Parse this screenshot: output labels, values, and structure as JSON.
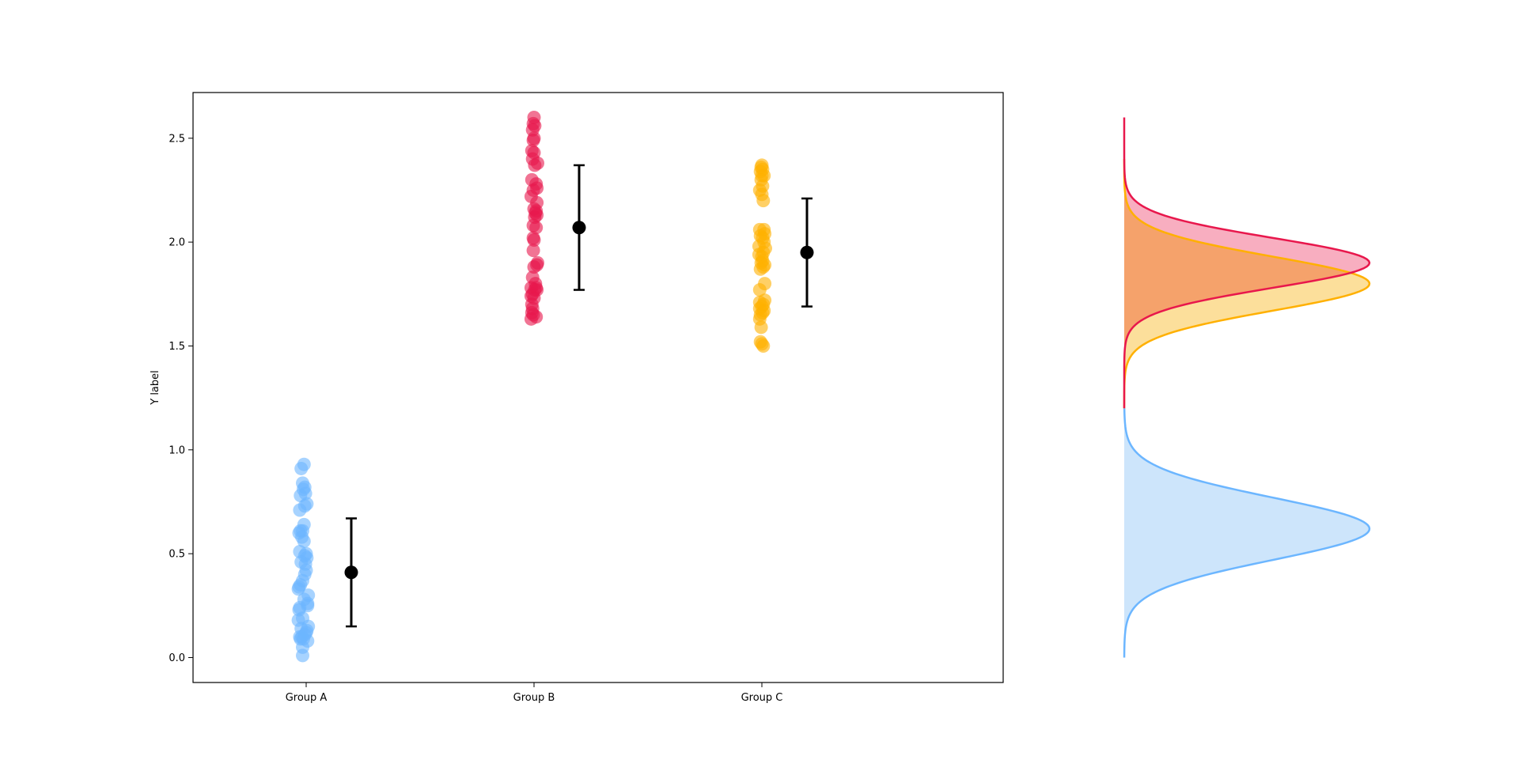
{
  "chart_data": {
    "type": "scatter",
    "ylabel": "Y label",
    "xlabel": "",
    "ylim": [
      -0.12,
      2.72
    ],
    "yticks": [
      "0.0",
      "0.5",
      "1.0",
      "1.5",
      "2.0",
      "2.5"
    ],
    "yticks_values": [
      0.0,
      0.5,
      1.0,
      1.5,
      2.0,
      2.5
    ],
    "categories": [
      "Group A",
      "Group B",
      "Group C"
    ],
    "grid": false,
    "series": [
      {
        "category": "Group A",
        "color": "#6cb6ff",
        "points": [
          [
            -0.03,
            0.93
          ],
          [
            -0.07,
            0.91
          ],
          [
            -0.05,
            0.84
          ],
          [
            -0.02,
            0.82
          ],
          [
            -0.04,
            0.81
          ],
          [
            -0.01,
            0.79
          ],
          [
            -0.08,
            0.78
          ],
          [
            0.01,
            0.74
          ],
          [
            -0.02,
            0.73
          ],
          [
            -0.09,
            0.71
          ],
          [
            -0.03,
            0.64
          ],
          [
            -0.08,
            0.61
          ],
          [
            -0.05,
            0.61
          ],
          [
            -0.1,
            0.6
          ],
          [
            -0.06,
            0.58
          ],
          [
            -0.03,
            0.56
          ],
          [
            -0.09,
            0.51
          ],
          [
            0.0,
            0.5
          ],
          [
            -0.02,
            0.49
          ],
          [
            0.01,
            0.48
          ],
          [
            -0.07,
            0.46
          ],
          [
            -0.01,
            0.45
          ],
          [
            0.0,
            0.42
          ],
          [
            -0.02,
            0.4
          ],
          [
            -0.05,
            0.37
          ],
          [
            -0.08,
            0.35
          ],
          [
            -0.1,
            0.34
          ],
          [
            -0.11,
            0.33
          ],
          [
            0.03,
            0.3
          ],
          [
            -0.03,
            0.28
          ],
          [
            0.02,
            0.26
          ],
          [
            0.02,
            0.25
          ],
          [
            -0.09,
            0.24
          ],
          [
            -0.1,
            0.23
          ],
          [
            -0.05,
            0.19
          ],
          [
            -0.11,
            0.18
          ],
          [
            0.03,
            0.15
          ],
          [
            -0.07,
            0.14
          ],
          [
            0.01,
            0.13
          ],
          [
            0.0,
            0.12
          ],
          [
            -0.02,
            0.11
          ],
          [
            -0.09,
            0.1
          ],
          [
            -0.06,
            0.1
          ],
          [
            -0.04,
            0.09
          ],
          [
            -0.08,
            0.09
          ],
          [
            0.02,
            0.08
          ],
          [
            -0.05,
            0.05
          ],
          [
            -0.05,
            0.01
          ]
        ],
        "mean": 0.41,
        "err_low": 0.15,
        "err_high": 0.67,
        "density_mode": 0.62,
        "density_sd": 0.15
      },
      {
        "category": "Group B",
        "color": "#e8174c",
        "points": [
          [
            0.0,
            2.6
          ],
          [
            -0.01,
            2.57
          ],
          [
            0.01,
            2.56
          ],
          [
            -0.02,
            2.54
          ],
          [
            0.0,
            2.5
          ],
          [
            -0.01,
            2.49
          ],
          [
            -0.03,
            2.44
          ],
          [
            0.0,
            2.43
          ],
          [
            -0.02,
            2.4
          ],
          [
            0.05,
            2.38
          ],
          [
            0.01,
            2.37
          ],
          [
            -0.03,
            2.3
          ],
          [
            0.03,
            2.28
          ],
          [
            0.04,
            2.26
          ],
          [
            -0.01,
            2.25
          ],
          [
            -0.04,
            2.22
          ],
          [
            0.04,
            2.19
          ],
          [
            0.0,
            2.16
          ],
          [
            0.03,
            2.15
          ],
          [
            0.02,
            2.14
          ],
          [
            0.04,
            2.13
          ],
          [
            0.01,
            2.12
          ],
          [
            -0.01,
            2.08
          ],
          [
            0.03,
            2.07
          ],
          [
            -0.01,
            2.02
          ],
          [
            0.0,
            2.01
          ],
          [
            -0.01,
            1.96
          ],
          [
            0.05,
            1.9
          ],
          [
            0.04,
            1.89
          ],
          [
            0.0,
            1.88
          ],
          [
            -0.02,
            1.83
          ],
          [
            0.02,
            1.8
          ],
          [
            -0.04,
            1.78
          ],
          [
            0.03,
            1.78
          ],
          [
            0.01,
            1.77
          ],
          [
            0.04,
            1.77
          ],
          [
            -0.02,
            1.75
          ],
          [
            -0.04,
            1.74
          ],
          [
            0.0,
            1.73
          ],
          [
            -0.03,
            1.7
          ],
          [
            -0.02,
            1.68
          ],
          [
            -0.03,
            1.66
          ],
          [
            -0.01,
            1.65
          ],
          [
            0.03,
            1.64
          ],
          [
            -0.04,
            1.63
          ]
        ],
        "mean": 2.07,
        "err_low": 1.77,
        "err_high": 2.37,
        "density_mode": 1.9,
        "density_sd": 0.12
      },
      {
        "category": "Group C",
        "color": "#ffb000",
        "points": [
          [
            0.0,
            2.37
          ],
          [
            -0.01,
            2.36
          ],
          [
            0.01,
            2.35
          ],
          [
            -0.02,
            2.34
          ],
          [
            0.0,
            2.32
          ],
          [
            0.03,
            2.32
          ],
          [
            -0.01,
            2.3
          ],
          [
            0.01,
            2.27
          ],
          [
            -0.03,
            2.25
          ],
          [
            0.0,
            2.23
          ],
          [
            0.02,
            2.2
          ],
          [
            0.03,
            2.06
          ],
          [
            -0.03,
            2.06
          ],
          [
            0.04,
            2.04
          ],
          [
            -0.02,
            2.03
          ],
          [
            0.01,
            2.02
          ],
          [
            0.03,
            2.0
          ],
          [
            -0.04,
            1.98
          ],
          [
            0.05,
            1.97
          ],
          [
            0.02,
            1.95
          ],
          [
            -0.04,
            1.94
          ],
          [
            0.0,
            1.93
          ],
          [
            0.01,
            1.91
          ],
          [
            -0.01,
            1.9
          ],
          [
            0.04,
            1.89
          ],
          [
            0.02,
            1.88
          ],
          [
            -0.02,
            1.87
          ],
          [
            0.04,
            1.8
          ],
          [
            -0.03,
            1.77
          ],
          [
            0.04,
            1.72
          ],
          [
            -0.03,
            1.71
          ],
          [
            0.02,
            1.7
          ],
          [
            0.0,
            1.69
          ],
          [
            -0.03,
            1.68
          ],
          [
            0.03,
            1.67
          ],
          [
            0.01,
            1.66
          ],
          [
            -0.02,
            1.65
          ],
          [
            -0.03,
            1.63
          ],
          [
            -0.01,
            1.59
          ],
          [
            -0.02,
            1.52
          ],
          [
            0.0,
            1.51
          ],
          [
            0.02,
            1.5
          ]
        ],
        "mean": 1.95,
        "err_low": 1.69,
        "err_high": 2.21,
        "density_mode": 1.8,
        "density_sd": 0.13
      }
    ],
    "mean_marker_color": "#000000",
    "density_panel": {
      "curves": [
        {
          "category": "Group A",
          "line_color": "#6cb6ff",
          "fill_color": "#c4e0fa"
        },
        {
          "category": "Group C",
          "line_color": "#ffb000",
          "fill_color": "#fbd98a"
        },
        {
          "category": "Group B",
          "line_color": "#e8174c",
          "fill_color": "#f7a0b5"
        }
      ],
      "overlap_fill_color": "#f5a26b"
    }
  }
}
